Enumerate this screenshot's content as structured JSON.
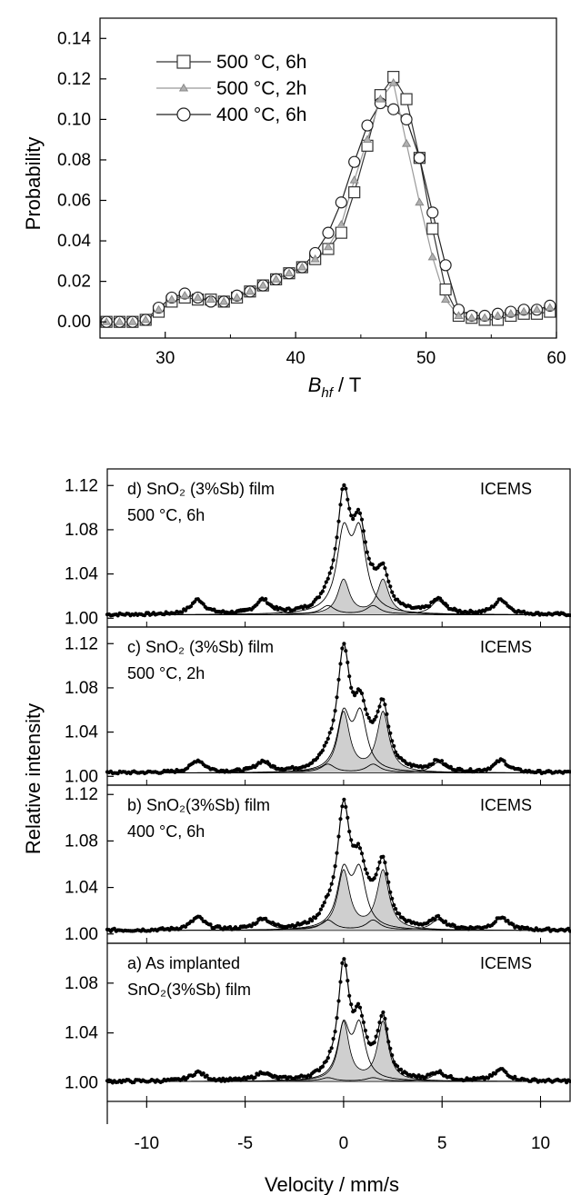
{
  "chart_data": [
    {
      "type": "line",
      "xlabel_main": "B",
      "xlabel_sub": "hf",
      "xlabel_unit": " / T",
      "ylabel": "Probability",
      "xlim": [
        25,
        60
      ],
      "ylim": [
        -0.008,
        0.15
      ],
      "xticks": [
        30,
        40,
        50,
        60
      ],
      "yticks": [
        0.0,
        0.02,
        0.04,
        0.06,
        0.08,
        0.1,
        0.12,
        0.14
      ],
      "ytick_labels": [
        "0.00",
        "0.02",
        "0.04",
        "0.06",
        "0.08",
        "0.10",
        "0.12",
        "0.14"
      ],
      "legend_position": "top-left",
      "series": [
        {
          "name": "500 °C, 6h",
          "marker": "square",
          "x": [
            25.5,
            26.5,
            27.5,
            28.5,
            29.5,
            30.5,
            31.5,
            32.5,
            33.5,
            34.5,
            35.5,
            36.5,
            37.5,
            38.5,
            39.5,
            40.5,
            41.5,
            42.5,
            43.5,
            44.5,
            45.5,
            46.5,
            47.5,
            48.5,
            49.5,
            50.5,
            51.5,
            52.5,
            53.5,
            54.5,
            55.5,
            56.5,
            57.5,
            58.5,
            59.5
          ],
          "y": [
            0.0,
            0.0,
            0.0,
            0.001,
            0.005,
            0.01,
            0.012,
            0.011,
            0.011,
            0.01,
            0.012,
            0.015,
            0.018,
            0.021,
            0.024,
            0.027,
            0.031,
            0.036,
            0.044,
            0.064,
            0.087,
            0.112,
            0.121,
            0.11,
            0.081,
            0.046,
            0.016,
            0.003,
            0.002,
            0.001,
            0.001,
            0.003,
            0.004,
            0.004,
            0.005
          ]
        },
        {
          "name": "500 °C, 2h",
          "marker": "triangle",
          "x": [
            25.5,
            26.5,
            27.5,
            28.5,
            29.5,
            30.5,
            31.5,
            32.5,
            33.5,
            34.5,
            35.5,
            36.5,
            37.5,
            38.5,
            39.5,
            40.5,
            41.5,
            42.5,
            43.5,
            44.5,
            45.5,
            46.5,
            47.5,
            48.5,
            49.5,
            50.5,
            51.5,
            52.5,
            53.5,
            54.5,
            55.5,
            56.5,
            57.5,
            58.5,
            59.5
          ],
          "y": [
            0.0,
            0.0,
            0.0,
            0.001,
            0.006,
            0.011,
            0.013,
            0.012,
            0.011,
            0.01,
            0.012,
            0.015,
            0.018,
            0.021,
            0.024,
            0.027,
            0.031,
            0.037,
            0.048,
            0.07,
            0.09,
            0.11,
            0.118,
            0.088,
            0.059,
            0.032,
            0.011,
            0.003,
            0.002,
            0.002,
            0.003,
            0.004,
            0.005,
            0.006,
            0.007
          ]
        },
        {
          "name": "400 °C, 6h",
          "marker": "circle",
          "x": [
            25.5,
            26.5,
            27.5,
            28.5,
            29.5,
            30.5,
            31.5,
            32.5,
            33.5,
            34.5,
            35.5,
            36.5,
            37.5,
            38.5,
            39.5,
            40.5,
            41.5,
            42.5,
            43.5,
            44.5,
            45.5,
            46.5,
            47.5,
            48.5,
            49.5,
            50.5,
            51.5,
            52.5,
            53.5,
            54.5,
            55.5,
            56.5,
            57.5,
            58.5,
            59.5
          ],
          "y": [
            0.0,
            0.0,
            0.0,
            0.001,
            0.007,
            0.012,
            0.014,
            0.012,
            0.01,
            0.01,
            0.013,
            0.015,
            0.018,
            0.021,
            0.024,
            0.027,
            0.034,
            0.044,
            0.059,
            0.079,
            0.097,
            0.108,
            0.105,
            0.1,
            0.081,
            0.054,
            0.028,
            0.006,
            0.003,
            0.003,
            0.004,
            0.005,
            0.006,
            0.006,
            0.008
          ]
        }
      ]
    },
    {
      "type": "line",
      "xlabel": "Velocity / mm/s",
      "ylabel": "Relative intensity",
      "xlim": [
        -12,
        11.5
      ],
      "xticks": [
        -10,
        -5,
        0,
        5,
        10
      ],
      "panels": [
        {
          "label": "d) SnO₂ (3%Sb) film",
          "label2": "500 °C, 6h",
          "method": "ICEMS",
          "ylim": [
            0.992,
            1.135
          ],
          "yticks": [
            1.0,
            1.04,
            1.08,
            1.12
          ],
          "ytick_labels": [
            "1.00",
            "1.04",
            "1.08",
            "1.12"
          ],
          "baseline": 1.003,
          "sextet_intensity": 0.015,
          "sextet_positions": [
            -7.4,
            -4.1,
            -0.8,
            1.5,
            4.8,
            8.0
          ],
          "sextet_weights": [
            1.0,
            0.95,
            0.6,
            0.6,
            0.95,
            1.0
          ],
          "doublet_A": {
            "positions": [
              0.0,
              2.0
            ],
            "amplitude": 0.036,
            "width": 0.36
          },
          "doublet_B": {
            "positions": [
              0.0,
              0.8
            ],
            "amplitude": 0.078,
            "width": 0.42
          },
          "peak_total": 1.121
        },
        {
          "label": "c) SnO₂ (3%Sb) film",
          "label2": "500 °C, 2h",
          "method": "ICEMS",
          "ylim": [
            0.992,
            1.135
          ],
          "yticks": [
            1.0,
            1.04,
            1.08,
            1.12
          ],
          "ytick_labels": [
            "1.00",
            "1.04",
            "1.08",
            "1.12"
          ],
          "baseline": 1.003,
          "sextet_intensity": 0.012,
          "sextet_positions": [
            -7.4,
            -4.1,
            -0.8,
            1.5,
            4.8,
            8.0
          ],
          "sextet_weights": [
            1.0,
            0.85,
            0.7,
            0.7,
            0.85,
            1.0
          ],
          "doublet_A": {
            "positions": [
              0.0,
              2.0
            ],
            "amplitude": 0.06,
            "width": 0.37
          },
          "doublet_B": {
            "positions": [
              0.0,
              0.85
            ],
            "amplitude": 0.055,
            "width": 0.4
          },
          "peak_total": 1.12
        },
        {
          "label": "b) SnO₂(3%Sb) film",
          "label2": "400 °C, 6h",
          "method": "ICEMS",
          "ylim": [
            0.992,
            1.128
          ],
          "yticks": [
            1.0,
            1.04,
            1.08,
            1.12
          ],
          "ytick_labels": [
            "1.00",
            "1.04",
            "1.08",
            "1.12"
          ],
          "baseline": 1.003,
          "sextet_intensity": 0.012,
          "sextet_positions": [
            -7.4,
            -4.1,
            -0.8,
            1.5,
            4.8,
            8.0
          ],
          "sextet_weights": [
            1.0,
            0.85,
            0.8,
            0.8,
            0.85,
            1.0
          ],
          "doublet_A": {
            "positions": [
              0.0,
              2.0
            ],
            "amplitude": 0.057,
            "width": 0.37
          },
          "doublet_B": {
            "positions": [
              0.0,
              0.8
            ],
            "amplitude": 0.053,
            "width": 0.4
          },
          "peak_total": 1.115
        },
        {
          "label": "a) As implanted",
          "label2": "SnO₂(3%Sb) film",
          "method": "ICEMS",
          "ylim": [
            0.985,
            1.112
          ],
          "yticks": [
            1.0,
            1.04,
            1.08
          ],
          "ytick_labels": [
            "1.00",
            "1.04",
            "1.08"
          ],
          "baseline": 1.001,
          "sextet_intensity": 0.008,
          "sextet_positions": [
            -7.4,
            -4.1,
            -0.8,
            1.5,
            4.8,
            8.0
          ],
          "sextet_weights": [
            1.0,
            0.9,
            0.4,
            0.4,
            0.9,
            1.3
          ],
          "doublet_A": {
            "positions": [
              0.0,
              2.0
            ],
            "amplitude": 0.054,
            "width": 0.33
          },
          "doublet_B": {
            "positions": [
              0.0,
              0.8
            ],
            "amplitude": 0.048,
            "width": 0.36
          },
          "peak_total": 1.1
        }
      ]
    }
  ]
}
